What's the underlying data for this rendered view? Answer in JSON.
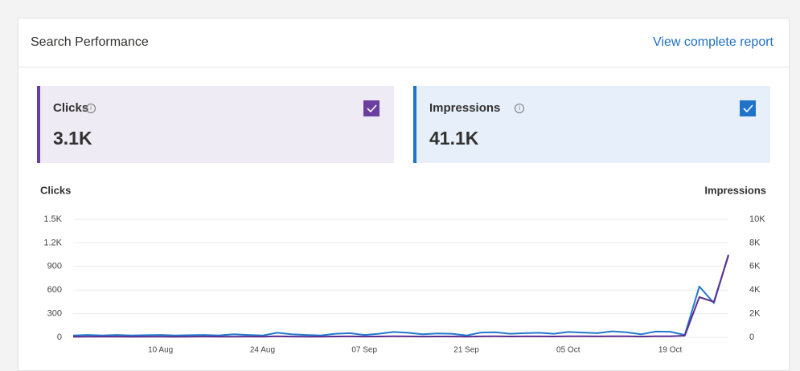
{
  "header": {
    "title": "Search Performance",
    "link": "View complete report"
  },
  "cards": [
    {
      "value": "3.1K",
      "bg": "#efebf5",
      "accent": "#6b3fa0"
    },
    {
      "value": "41.1K",
      "bg": "#e7f0fa",
      "accent": "#1f73c9"
    }
  ],
  "chart_data": {
    "type": "line",
    "ylabel": "Clicks",
    "y2label": "Impressions",
    "categories": [
      null,
      null,
      null,
      null,
      null,
      null,
      "10 Aug",
      null,
      null,
      null,
      null,
      null,
      null,
      "24 Aug",
      null,
      null,
      null,
      null,
      null,
      null,
      "07 Sep",
      null,
      null,
      null,
      null,
      null,
      null,
      "21 Sep",
      null,
      null,
      null,
      null,
      null,
      null,
      "05 Oct",
      null,
      null,
      null,
      null,
      null,
      null,
      "19 Oct",
      null,
      null,
      null,
      null
    ],
    "ylim": [
      0,
      1500
    ],
    "yticks": [
      0,
      300,
      600,
      900,
      {
        "value": 1200,
        "label": "1.2K"
      },
      {
        "value": 1500,
        "label": "1.5K"
      }
    ],
    "y2lim": [
      0,
      10000
    ],
    "y2ticks": [
      0,
      {
        "value": 2000,
        "label": "2K"
      },
      {
        "value": 4000,
        "label": "4K"
      },
      {
        "value": 6000,
        "label": "6K"
      },
      {
        "value": 8000,
        "label": "8K"
      },
      {
        "value": 10000,
        "label": "10K"
      }
    ],
    "grid": true,
    "series": [
      {
        "name": "Clicks",
        "color": "#5b2d90",
        "values": [
          6,
          8,
          7,
          9,
          6,
          8,
          7,
          6,
          8,
          9,
          7,
          8,
          9,
          7,
          12,
          9,
          8,
          7,
          10,
          11,
          9,
          10,
          12,
          11,
          9,
          10,
          10,
          7,
          11,
          12,
          10,
          11,
          11,
          10,
          12,
          12,
          11,
          13,
          12,
          9,
          13,
          12,
          20,
          510,
          450,
          1040
        ]
      },
      {
        "name": "Impressions",
        "color": "#2479cf",
        "values": [
          150,
          200,
          150,
          200,
          150,
          180,
          200,
          150,
          180,
          200,
          150,
          250,
          200,
          150,
          380,
          250,
          200,
          150,
          300,
          350,
          200,
          300,
          450,
          380,
          250,
          320,
          300,
          150,
          400,
          420,
          300,
          350,
          380,
          300,
          450,
          400,
          350,
          500,
          420,
          250,
          480,
          470,
          200,
          4300,
          2900,
          7000
        ],
        "axis": "y2"
      }
    ]
  }
}
